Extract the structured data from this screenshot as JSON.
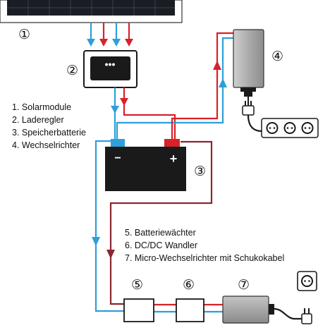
{
  "components": {
    "solar_module_number": "①",
    "charge_controller_number": "②",
    "battery_number": "③",
    "inverter_number": "④",
    "battery_monitor_number": "⑤",
    "dcdc_converter_number": "⑥",
    "micro_inverter_number": "⑦",
    "controller_display": "•••",
    "battery_minus": "−",
    "battery_plus": "+"
  },
  "legend_top": [
    "1. Solarmodule",
    "2. Laderegler",
    "3. Speicherbatterie",
    "4. Wechselrichter"
  ],
  "legend_bottom": [
    "5. Batteriewächter",
    "6. DC/DC Wandler",
    "7. Micro-Wechselrichter mit Schukokabel"
  ],
  "colors": {
    "positive_wire": "#d8212b",
    "negative_wire": "#2e9fd8",
    "return_wire": "#8a2731",
    "device_gray": "#a6a6a6",
    "battery_body": "#1a1a1a"
  }
}
